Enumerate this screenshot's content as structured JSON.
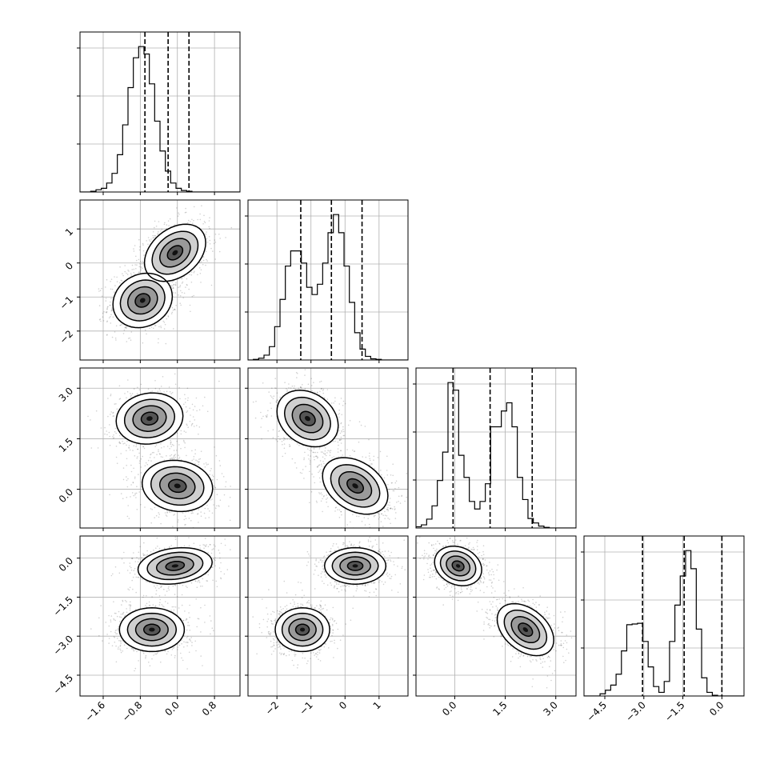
{
  "chart_data": {
    "type": "corner",
    "parameters": 4,
    "grid": true,
    "quantiles": [
      0.16,
      0.5,
      0.84
    ],
    "ranges": [
      [
        -2.1,
        1.35
      ],
      [
        -2.85,
        1.85
      ],
      [
        -1.15,
        3.6
      ],
      [
        -5.3,
        0.85
      ]
    ],
    "ticks": [
      {
        "values": [
          -1.6,
          -0.8,
          0.0,
          0.8
        ],
        "labels": [
          "−1.6",
          "−0.8",
          "0.0",
          "0.8"
        ]
      },
      {
        "values": [
          -2,
          -1,
          0,
          1
        ],
        "labels": [
          "−2",
          "−1",
          "0",
          "1"
        ]
      },
      {
        "values": [
          0.0,
          1.5,
          3.0
        ],
        "labels": [
          "0.0",
          "1.5",
          "3.0"
        ]
      },
      {
        "values": [
          -4.5,
          -3.0,
          -1.5,
          0.0
        ],
        "labels": [
          "−4.5",
          "−3.0",
          "−1.5",
          "0.0"
        ]
      }
    ],
    "histograms": [
      {
        "param": 0,
        "edges_start": -2.1,
        "bin_width": 0.115,
        "counts": [
          0,
          0,
          1,
          3,
          5,
          12,
          25,
          50,
          90,
          140,
          180,
          195,
          185,
          145,
          95,
          55,
          28,
          12,
          5,
          2,
          1,
          0,
          0,
          0,
          0,
          0,
          0,
          0,
          0,
          0
        ],
        "quantiles": [
          -0.7,
          -0.2,
          0.25
        ]
      },
      {
        "param": 1,
        "edges_start": -2.85,
        "bin_width": 0.1567,
        "counts": [
          0,
          1,
          3,
          8,
          22,
          55,
          100,
          155,
          180,
          180,
          160,
          120,
          108,
          125,
          160,
          210,
          240,
          210,
          155,
          95,
          45,
          18,
          6,
          2,
          1,
          0,
          0,
          0,
          0,
          0
        ],
        "quantiles": [
          -1.3,
          -0.4,
          0.5
        ]
      },
      {
        "param": 2,
        "edges_start": -1.15,
        "bin_width": 0.1583,
        "counts": [
          2,
          5,
          14,
          35,
          75,
          120,
          230,
          218,
          115,
          80,
          42,
          30,
          42,
          70,
          160,
          160,
          185,
          198,
          160,
          80,
          45,
          15,
          8,
          3,
          1,
          0,
          0,
          0,
          0,
          0
        ],
        "quantiles": [
          -0.05,
          1.05,
          2.3
        ]
      },
      {
        "param": 3,
        "edges_start": -5.3,
        "bin_width": 0.2055,
        "counts": [
          0,
          0,
          0,
          3,
          8,
          15,
          30,
          62,
          98,
          99,
          100,
          75,
          40,
          13,
          5,
          20,
          75,
          125,
          165,
          200,
          175,
          92,
          25,
          5,
          1,
          0,
          0,
          0,
          0,
          0
        ],
        "quantiles": [
          -3.05,
          -1.45,
          0.0
        ]
      }
    ],
    "joint_modes": [
      {
        "x": 1,
        "y": 0,
        "components": [
          {
            "mx": -0.75,
            "my": -1.1,
            "sx": 0.32,
            "sy": 0.4,
            "rho": 0.15
          },
          {
            "mx": -0.05,
            "my": 0.3,
            "sx": 0.33,
            "sy": 0.42,
            "rho": 0.35
          }
        ]
      },
      {
        "x": 2,
        "y": 0,
        "components": [
          {
            "mx": -0.6,
            "my": 2.1,
            "sx": 0.36,
            "sy": 0.38,
            "rho": 0.1
          },
          {
            "mx": 0.0,
            "my": 0.1,
            "sx": 0.38,
            "sy": 0.38,
            "rho": -0.1
          }
        ]
      },
      {
        "x": 2,
        "y": 1,
        "components": [
          {
            "mx": -1.1,
            "my": 2.1,
            "sx": 0.45,
            "sy": 0.42,
            "rho": -0.25
          },
          {
            "mx": 0.3,
            "my": 0.1,
            "sx": 0.48,
            "sy": 0.42,
            "rho": -0.35
          }
        ]
      },
      {
        "x": 3,
        "y": 0,
        "components": [
          {
            "mx": -0.05,
            "my": -0.3,
            "sx": 0.4,
            "sy": 0.35,
            "rho": 0.2
          },
          {
            "mx": -0.55,
            "my": -2.75,
            "sx": 0.35,
            "sy": 0.42,
            "rho": 0.0
          }
        ]
      },
      {
        "x": 3,
        "y": 1,
        "components": [
          {
            "mx": 0.3,
            "my": -0.3,
            "sx": 0.45,
            "sy": 0.35,
            "rho": 0.0
          },
          {
            "mx": -1.25,
            "my": -2.75,
            "sx": 0.4,
            "sy": 0.42,
            "rho": 0.0
          }
        ]
      },
      {
        "x": 3,
        "y": 2,
        "components": [
          {
            "mx": 0.1,
            "my": -0.3,
            "sx": 0.35,
            "sy": 0.38,
            "rho": -0.2
          },
          {
            "mx": 2.1,
            "my": -2.75,
            "sx": 0.42,
            "sy": 0.5,
            "rho": -0.4
          }
        ]
      }
    ]
  }
}
